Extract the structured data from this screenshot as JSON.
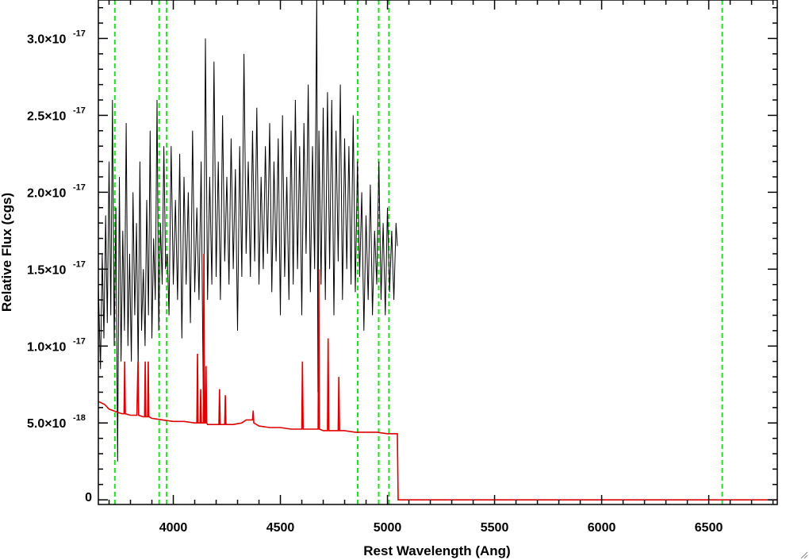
{
  "chart_data": {
    "type": "line",
    "title": "",
    "xlabel": "Rest Wavelength (Ang)",
    "ylabel": "Relative Flux (cgs)",
    "xlim": [
      3650,
      6820
    ],
    "ylim": [
      -3e-19,
      3.25e-17
    ],
    "grid": false,
    "x_ticks": [
      {
        "value": 4000,
        "label": "4000"
      },
      {
        "value": 4500,
        "label": "4500"
      },
      {
        "value": 5000,
        "label": "5000"
      },
      {
        "value": 5500,
        "label": "5500"
      },
      {
        "value": 6000,
        "label": "6000"
      },
      {
        "value": 6500,
        "label": "6500"
      }
    ],
    "y_ticks": [
      {
        "value": 0,
        "mant": "0",
        "exp": ""
      },
      {
        "value": 5e-18,
        "mant": "5.0×10",
        "exp": "-18"
      },
      {
        "value": 1e-17,
        "mant": "1.0×10",
        "exp": "-17"
      },
      {
        "value": 1.5e-17,
        "mant": "1.5×10",
        "exp": "-17"
      },
      {
        "value": 2e-17,
        "mant": "2.0×10",
        "exp": "-17"
      },
      {
        "value": 2.5e-17,
        "mant": "2.5×10",
        "exp": "-17"
      },
      {
        "value": 3e-17,
        "mant": "3.0×10",
        "exp": "-17"
      }
    ],
    "reference_lines": {
      "color": "#22dd22",
      "style": "dashed",
      "x": [
        3727,
        3934,
        3969,
        4861,
        4959,
        5007,
        6563
      ]
    },
    "series": [
      {
        "color": "#000000",
        "x": [
          3650,
          3660,
          3668,
          3676,
          3684,
          3692,
          3700,
          3708,
          3716,
          3724,
          3732,
          3740,
          3748,
          3756,
          3764,
          3772,
          3780,
          3788,
          3796,
          3804,
          3812,
          3820,
          3828,
          3836,
          3844,
          3852,
          3860,
          3868,
          3876,
          3884,
          3892,
          3900,
          3908,
          3916,
          3924,
          3932,
          3940,
          3948,
          3956,
          3964,
          3972,
          3980,
          3990,
          4000,
          4010,
          4020,
          4030,
          4040,
          4050,
          4060,
          4070,
          4080,
          4090,
          4100,
          4110,
          4120,
          4130,
          4140,
          4150,
          4160,
          4170,
          4180,
          4190,
          4200,
          4210,
          4220,
          4230,
          4240,
          4250,
          4260,
          4270,
          4280,
          4290,
          4300,
          4310,
          4320,
          4330,
          4340,
          4350,
          4360,
          4370,
          4380,
          4390,
          4400,
          4410,
          4420,
          4430,
          4440,
          4450,
          4460,
          4470,
          4480,
          4490,
          4500,
          4510,
          4520,
          4530,
          4540,
          4550,
          4560,
          4570,
          4580,
          4590,
          4600,
          4610,
          4620,
          4630,
          4640,
          4650,
          4660,
          4670,
          4675,
          4680,
          4690,
          4700,
          4710,
          4720,
          4730,
          4740,
          4750,
          4760,
          4770,
          4780,
          4790,
          4800,
          4810,
          4820,
          4830,
          4840,
          4850,
          4860,
          4870,
          4880,
          4890,
          4900,
          4910,
          4920,
          4930,
          4940,
          4950,
          4960,
          4970,
          4980,
          4990,
          5000,
          5010,
          5020,
          5030,
          5040,
          5046
        ],
        "y": [
          1.4e-17,
          8.5e-18,
          1.6e-17,
          1.05e-17,
          1.85e-17,
          1.15e-17,
          2.2e-17,
          1.2e-17,
          2.6e-17,
          1e-17,
          1.9e-17,
          2.5e-18,
          2.1e-17,
          9e-18,
          1.75e-17,
          1.1e-17,
          2.45e-17,
          1e-17,
          1.6e-17,
          9e-18,
          2e-17,
          1.2e-17,
          1.8e-17,
          8.5e-18,
          2.2e-17,
          1.1e-17,
          1.5e-17,
          1e-17,
          1.95e-17,
          1.2e-17,
          2.4e-17,
          1.05e-17,
          1.7e-17,
          1.3e-17,
          2.6e-17,
          1.1e-17,
          1.8e-17,
          1.4e-17,
          2.3e-17,
          1.5e-17,
          1.6e-17,
          1.2e-17,
          2.3e-17,
          1.4e-17,
          1.95e-17,
          1.3e-17,
          2.25e-17,
          1.05e-17,
          2.1e-17,
          1.4e-17,
          2e-17,
          1.15e-17,
          2.4e-17,
          1.35e-17,
          1.9e-17,
          1.3e-17,
          2.2e-17,
          6.5e-18,
          3e-17,
          1.3e-17,
          2.1e-17,
          1.4e-17,
          2.85e-17,
          1.45e-17,
          2.2e-17,
          1.3e-17,
          2.5e-17,
          1.55e-17,
          2.1e-17,
          1.4e-17,
          2.35e-17,
          1.5e-17,
          2.15e-17,
          1.1e-17,
          2.3e-17,
          1.45e-17,
          2.9e-17,
          1.6e-17,
          2.2e-17,
          1.45e-17,
          2.4e-17,
          1.55e-17,
          2.55e-17,
          1.4e-17,
          2.1e-17,
          1.5e-17,
          2.3e-17,
          1.6e-17,
          2.45e-17,
          1.35e-17,
          2.2e-17,
          1.55e-17,
          2.35e-17,
          1.2e-17,
          2.5e-17,
          1.45e-17,
          2.1e-17,
          1.3e-17,
          2.4e-17,
          1.4e-17,
          2.6e-17,
          1.5e-17,
          2.3e-17,
          1.2e-17,
          2.45e-17,
          1.6e-17,
          2.7e-17,
          1.35e-17,
          2.3e-17,
          1.5e-17,
          3.3e-17,
          7e-18,
          2.4e-17,
          1.4e-17,
          2.55e-17,
          1.3e-17,
          2.65e-17,
          1.5e-17,
          2.6e-17,
          1.2e-17,
          2.4e-17,
          1.55e-17,
          2.7e-17,
          1.3e-17,
          2.35e-17,
          1.5e-17,
          2.3e-17,
          1.4e-17,
          2.5e-17,
          1.35e-17,
          2.2e-17,
          1.45e-17,
          2e-17,
          1.1e-17,
          1.85e-17,
          1.3e-17,
          2.05e-17,
          1.2e-17,
          1.75e-17,
          1.4e-17,
          2.2e-17,
          1.3e-17,
          1.8e-17,
          1.2e-17,
          1.9e-17,
          1.35e-17,
          1.75e-17,
          1.3e-17,
          1.8e-17,
          1.65e-17
        ]
      },
      {
        "color": "#dd0000",
        "x": [
          3650,
          3680,
          3700,
          3720,
          3740,
          3760,
          3770,
          3773,
          3776,
          3800,
          3830,
          3835,
          3838,
          3860,
          3866,
          3869,
          3872,
          3880,
          3883,
          3886,
          3900,
          3950,
          4000,
          4050,
          4100,
          4110,
          4113,
          4116,
          4125,
          4128,
          4131,
          4140,
          4143,
          4146,
          4150,
          4153,
          4156,
          4160,
          4200,
          4213,
          4216,
          4219,
          4240,
          4243,
          4246,
          4280,
          4320,
          4340,
          4360,
          4370,
          4373,
          4376,
          4400,
          4450,
          4500,
          4550,
          4590,
          4600,
          4603,
          4606,
          4630,
          4650,
          4670,
          4676,
          4679,
          4682,
          4700,
          4720,
          4723,
          4726,
          4750,
          4770,
          4773,
          4776,
          4800,
          4850,
          4900,
          4950,
          5000,
          5040,
          5046,
          5050,
          6820
        ],
        "y": [
          6.4e-18,
          6.2e-18,
          5.9e-18,
          5.8e-18,
          5.7e-18,
          5.6e-18,
          5.6e-18,
          9e-18,
          5.6e-18,
          5.5e-18,
          5.5e-18,
          9e-18,
          5.5e-18,
          5.4e-18,
          5.4e-18,
          9e-18,
          5.4e-18,
          5.4e-18,
          9e-18,
          5.4e-18,
          5.3e-18,
          5.2e-18,
          5.1e-18,
          5.1e-18,
          5e-18,
          5e-18,
          9.5e-18,
          5e-18,
          5e-18,
          7.2e-18,
          5e-18,
          5e-18,
          1.6e-17,
          5e-18,
          5e-18,
          8.7e-18,
          5e-18,
          4.9e-18,
          4.9e-18,
          4.9e-18,
          7.2e-18,
          4.9e-18,
          4.9e-18,
          6.8e-18,
          4.9e-18,
          4.9e-18,
          5e-18,
          5.2e-18,
          5.2e-18,
          5.2e-18,
          5.8e-18,
          5e-18,
          4.8e-18,
          4.7e-18,
          4.7e-18,
          4.6e-18,
          4.6e-18,
          4.6e-18,
          9e-18,
          4.6e-18,
          4.6e-18,
          4.6e-18,
          4.6e-18,
          4.6e-18,
          1.5e-17,
          4.6e-18,
          4.5e-18,
          4.5e-18,
          1.05e-17,
          4.5e-18,
          4.5e-18,
          4.5e-18,
          8e-18,
          4.5e-18,
          4.5e-18,
          4.4e-18,
          4.4e-18,
          4.4e-18,
          4.3e-18,
          4.3e-18,
          4.3e-18,
          0.0,
          0.0
        ]
      }
    ]
  }
}
